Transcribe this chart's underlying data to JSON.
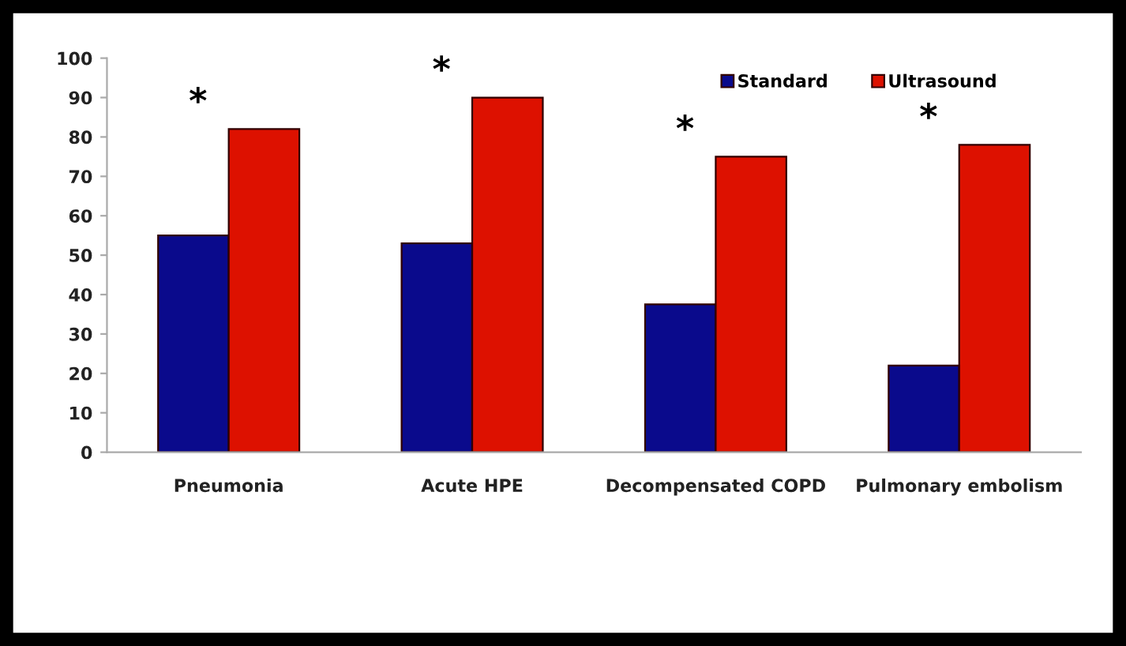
{
  "chart_data": {
    "type": "bar",
    "categories": [
      "Pneumonia",
      "Acute HPE",
      "Decompensated COPD",
      "Pulmonary embolism"
    ],
    "series": [
      {
        "name": "Standard",
        "color": "#0a0a8c",
        "values": [
          55,
          53,
          37.5,
          22
        ]
      },
      {
        "name": "Ultrasound",
        "color": "#dd1100",
        "values": [
          82,
          90,
          75,
          78
        ]
      }
    ],
    "ylim": [
      0,
      100
    ],
    "yticks": [
      0,
      10,
      20,
      30,
      40,
      50,
      60,
      70,
      80,
      90,
      100
    ],
    "grid": false,
    "legend": "top right",
    "annotations": [
      {
        "text": "*",
        "x": "Pneumonia",
        "y": 82
      },
      {
        "text": "*",
        "x": "Acute HPE",
        "y": 90
      },
      {
        "text": "*",
        "x": "Decompensated COPD",
        "y": 75
      },
      {
        "text": "*",
        "x": "Pulmonary embolism",
        "y": 78
      }
    ]
  }
}
